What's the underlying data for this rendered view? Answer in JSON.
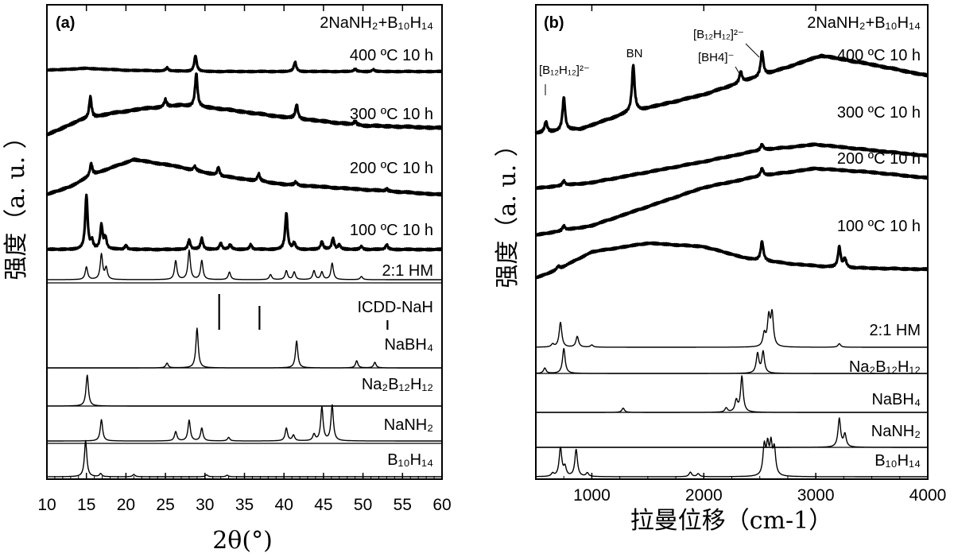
{
  "chart_data": [
    {
      "type": "line",
      "panel_label": "(a)",
      "header_text": "2NaNH₂+B₁₀H₁₄",
      "xlabel": "2θ(°)",
      "ylabel": "强度（a. u. ）",
      "xlim": [
        10,
        60
      ],
      "x_ticks": [
        "10",
        "15",
        "20",
        "25",
        "30",
        "35",
        "40",
        "45",
        "50",
        "55",
        "60"
      ],
      "series": [
        {
          "name": "400 ºC 10 h",
          "style": "thick",
          "background": [
            [
              10,
              0.02
            ],
            [
              15,
              0.05
            ],
            [
              20,
              0.02
            ],
            [
              30,
              0.0
            ],
            [
              40,
              0.0
            ],
            [
              50,
              0.0
            ],
            [
              60,
              0.0
            ]
          ],
          "peaks": [
            [
              25.2,
              0.05
            ],
            [
              28.8,
              0.25
            ],
            [
              41.4,
              0.15
            ],
            [
              49.0,
              0.04
            ],
            [
              51.3,
              0.03
            ]
          ]
        },
        {
          "name": "300 ºC 10 h",
          "style": "thick",
          "background": [
            [
              10,
              0.0
            ],
            [
              14,
              0.12
            ],
            [
              18,
              0.18
            ],
            [
              22,
              0.22
            ],
            [
              27,
              0.25
            ],
            [
              32,
              0.22
            ],
            [
              40,
              0.15
            ],
            [
              50,
              0.08
            ],
            [
              60,
              0.06
            ]
          ],
          "peaks": [
            [
              15.5,
              0.18
            ],
            [
              25.0,
              0.06
            ],
            [
              28.9,
              0.28
            ],
            [
              41.6,
              0.12
            ],
            [
              49.0,
              0.03
            ]
          ]
        },
        {
          "name": "200 ºC 10 h",
          "style": "thick",
          "background": [
            [
              10,
              0.0
            ],
            [
              13,
              0.08
            ],
            [
              16,
              0.2
            ],
            [
              21,
              0.34
            ],
            [
              26,
              0.28
            ],
            [
              32,
              0.18
            ],
            [
              40,
              0.1
            ],
            [
              50,
              0.05
            ],
            [
              60,
              0.0
            ]
          ],
          "peaks": [
            [
              15.6,
              0.12
            ],
            [
              28.7,
              0.04
            ],
            [
              31.7,
              0.08
            ],
            [
              36.8,
              0.07
            ],
            [
              41.5,
              0.03
            ],
            [
              53.0,
              0.02
            ]
          ]
        },
        {
          "name": "100 ºC 10 h",
          "style": "thick",
          "background": [
            [
              10,
              0.0
            ],
            [
              60,
              0.0
            ]
          ],
          "peaks": [
            [
              15.0,
              0.68
            ],
            [
              15.7,
              0.1
            ],
            [
              16.9,
              0.3
            ],
            [
              17.4,
              0.14
            ],
            [
              20.0,
              0.05
            ],
            [
              28.0,
              0.12
            ],
            [
              29.6,
              0.14
            ],
            [
              32.0,
              0.08
            ],
            [
              33.2,
              0.06
            ],
            [
              35.8,
              0.06
            ],
            [
              40.3,
              0.46
            ],
            [
              41.3,
              0.08
            ],
            [
              44.8,
              0.1
            ],
            [
              46.2,
              0.14
            ],
            [
              47.0,
              0.06
            ],
            [
              49.8,
              0.04
            ],
            [
              53.0,
              0.06
            ]
          ]
        },
        {
          "name": "2:1 HM",
          "style": "thin",
          "background": [
            [
              10,
              0.0
            ],
            [
              60,
              0.0
            ]
          ],
          "peaks": [
            [
              15.0,
              0.2
            ],
            [
              16.9,
              0.4
            ],
            [
              17.5,
              0.18
            ],
            [
              26.3,
              0.3
            ],
            [
              28.0,
              0.46
            ],
            [
              29.6,
              0.3
            ],
            [
              33.1,
              0.12
            ],
            [
              38.3,
              0.08
            ],
            [
              40.3,
              0.14
            ],
            [
              41.3,
              0.12
            ],
            [
              43.8,
              0.14
            ],
            [
              44.8,
              0.12
            ],
            [
              46.1,
              0.26
            ],
            [
              49.8,
              0.05
            ]
          ]
        },
        {
          "name": "ICDD-NaH",
          "style": "stick",
          "sticks": [
            [
              31.8,
              0.75
            ],
            [
              36.9,
              0.5
            ],
            [
              53.1,
              0.2
            ]
          ]
        },
        {
          "name": "NaBH₄",
          "style": "thin",
          "background": [
            [
              10,
              0.0
            ],
            [
              60,
              0.0
            ]
          ],
          "peaks": [
            [
              25.2,
              0.12
            ],
            [
              29.0,
              1.0
            ],
            [
              41.6,
              0.68
            ],
            [
              49.2,
              0.18
            ],
            [
              51.5,
              0.14
            ]
          ]
        },
        {
          "name": "Na₂B₁₂H₁₂",
          "style": "thin",
          "background": [
            [
              10,
              0.0
            ],
            [
              60,
              0.0
            ]
          ],
          "peaks": [
            [
              15.1,
              0.78
            ]
          ]
        },
        {
          "name": "NaNH₂",
          "style": "thin",
          "background": [
            [
              10,
              0.0
            ],
            [
              60,
              0.0
            ]
          ],
          "peaks": [
            [
              16.9,
              0.6
            ],
            [
              26.3,
              0.26
            ],
            [
              28.0,
              0.58
            ],
            [
              29.6,
              0.36
            ],
            [
              33.0,
              0.1
            ],
            [
              40.3,
              0.36
            ],
            [
              41.2,
              0.16
            ],
            [
              43.8,
              0.18
            ],
            [
              44.8,
              0.95
            ],
            [
              46.1,
              1.0
            ]
          ]
        },
        {
          "name": "B₁₀H₁₄",
          "style": "thin",
          "background": [
            [
              10,
              0.0
            ],
            [
              60,
              0.0
            ]
          ],
          "peaks": [
            [
              14.9,
              0.95
            ],
            [
              16.8,
              0.08
            ],
            [
              21.0,
              0.06
            ],
            [
              30.2,
              0.05
            ],
            [
              32.8,
              0.04
            ]
          ]
        }
      ]
    },
    {
      "type": "line",
      "panel_label": "(b)",
      "header_text": "2NaNH₂+B₁₀H₁₄",
      "xlabel": "拉曼位移（cm-1）",
      "ylabel": "强度（a. u. ）",
      "xlim": [
        500,
        4000
      ],
      "x_ticks": [
        "1000",
        "2000",
        "3000",
        "4000"
      ],
      "annotations": [
        {
          "text": "[B₁₂H₁₂]²⁻",
          "x": 700
        },
        {
          "text": "BN",
          "x": 1370
        },
        {
          "text": "[B₁₂H₁₂]²⁻",
          "x": 2450
        },
        {
          "text": "[BH4]⁻",
          "x": 2300
        }
      ],
      "series": [
        {
          "name": "400 ºC 10 h",
          "style": "thick",
          "background": [
            [
              500,
              0.0
            ],
            [
              900,
              0.04
            ],
            [
              1300,
              0.18
            ],
            [
              2000,
              0.35
            ],
            [
              2400,
              0.48
            ],
            [
              2700,
              0.58
            ],
            [
              3050,
              0.7
            ],
            [
              3500,
              0.62
            ],
            [
              4000,
              0.52
            ]
          ],
          "peaks": [
            [
              590,
              0.1
            ],
            [
              750,
              0.3
            ],
            [
              1370,
              0.42
            ],
            [
              2330,
              0.1
            ],
            [
              2520,
              0.22
            ]
          ]
        },
        {
          "name": "300 ºC 10 h",
          "style": "thick",
          "background": [
            [
              500,
              0.0
            ],
            [
              1000,
              0.06
            ],
            [
              1500,
              0.17
            ],
            [
              2000,
              0.28
            ],
            [
              2500,
              0.4
            ],
            [
              3000,
              0.46
            ],
            [
              3500,
              0.4
            ],
            [
              4000,
              0.34
            ]
          ],
          "peaks": [
            [
              750,
              0.05
            ],
            [
              2520,
              0.06
            ]
          ]
        },
        {
          "name": "200 ºC 10 h",
          "style": "thick",
          "background": [
            [
              500,
              0.0
            ],
            [
              1000,
              0.1
            ],
            [
              1500,
              0.3
            ],
            [
              2000,
              0.5
            ],
            [
              2500,
              0.62
            ],
            [
              3000,
              0.7
            ],
            [
              3500,
              0.66
            ],
            [
              4000,
              0.6
            ]
          ],
          "peaks": [
            [
              750,
              0.05
            ],
            [
              2520,
              0.08
            ]
          ]
        },
        {
          "name": "100 ºC 10 h",
          "style": "thick",
          "background": [
            [
              500,
              0.0
            ],
            [
              700,
              0.1
            ],
            [
              1000,
              0.3
            ],
            [
              1500,
              0.4
            ],
            [
              2000,
              0.36
            ],
            [
              2400,
              0.22
            ],
            [
              2800,
              0.16
            ],
            [
              3200,
              0.12
            ],
            [
              4000,
              0.1
            ]
          ],
          "peaks": [
            [
              700,
              0.04
            ],
            [
              2520,
              0.22
            ],
            [
              3210,
              0.24
            ],
            [
              3260,
              0.1
            ]
          ]
        },
        {
          "name": "2:1 HM",
          "style": "thin",
          "background": [
            [
              500,
              0.0
            ],
            [
              4000,
              0.0
            ]
          ],
          "peaks": [
            [
              650,
              0.08
            ],
            [
              720,
              0.7
            ],
            [
              870,
              0.3
            ],
            [
              1000,
              0.06
            ],
            [
              2540,
              0.35
            ],
            [
              2580,
              0.8
            ],
            [
              2610,
              0.9
            ],
            [
              3210,
              0.1
            ]
          ]
        },
        {
          "name": "Na₂B₁₂H₁₂",
          "style": "thin",
          "background": [
            [
              500,
              0.0
            ],
            [
              4000,
              0.0
            ]
          ],
          "peaks": [
            [
              580,
              0.15
            ],
            [
              750,
              0.7
            ],
            [
              2480,
              0.55
            ],
            [
              2530,
              0.6
            ]
          ]
        },
        {
          "name": "NaBH₄",
          "style": "thin",
          "background": [
            [
              500,
              0.0
            ],
            [
              4000,
              0.0
            ]
          ],
          "peaks": [
            [
              1280,
              0.12
            ],
            [
              2200,
              0.12
            ],
            [
              2290,
              0.32
            ],
            [
              2340,
              1.0
            ]
          ]
        },
        {
          "name": "NaNH₂",
          "style": "thin",
          "background": [
            [
              500,
              0.0
            ],
            [
              4000,
              0.0
            ]
          ],
          "peaks": [
            [
              3210,
              0.9
            ],
            [
              3260,
              0.4
            ]
          ]
        },
        {
          "name": "B₁₀H₁₄",
          "style": "thin",
          "background": [
            [
              500,
              0.0
            ],
            [
              4000,
              0.0
            ]
          ],
          "peaks": [
            [
              650,
              0.1
            ],
            [
              720,
              0.95
            ],
            [
              760,
              0.3
            ],
            [
              860,
              0.9
            ],
            [
              960,
              0.12
            ],
            [
              1880,
              0.15
            ],
            [
              1950,
              0.1
            ],
            [
              2540,
              0.95
            ],
            [
              2570,
              0.9
            ],
            [
              2600,
              0.95
            ],
            [
              2630,
              0.85
            ]
          ]
        }
      ]
    }
  ]
}
